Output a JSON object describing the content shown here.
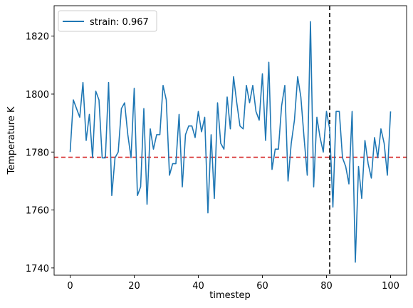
{
  "chart_data": {
    "type": "line",
    "title": "",
    "xlabel": "timestep",
    "ylabel": "Temperature K",
    "xlim": [
      -5,
      105
    ],
    "ylim": [
      1737.5,
      1830.5
    ],
    "xticks": [
      0,
      20,
      40,
      60,
      80,
      100
    ],
    "yticks": [
      1740,
      1760,
      1780,
      1800,
      1820
    ],
    "grid": false,
    "legend_position": "top-left",
    "series": [
      {
        "name": "strain: 0.967",
        "color": "#1f77b4",
        "x": [
          0,
          1,
          2,
          3,
          4,
          5,
          6,
          7,
          8,
          9,
          10,
          11,
          12,
          13,
          14,
          15,
          16,
          17,
          18,
          19,
          20,
          21,
          22,
          23,
          24,
          25,
          26,
          27,
          28,
          29,
          30,
          31,
          32,
          33,
          34,
          35,
          36,
          37,
          38,
          39,
          40,
          41,
          42,
          43,
          44,
          45,
          46,
          47,
          48,
          49,
          50,
          51,
          52,
          53,
          54,
          55,
          56,
          57,
          58,
          59,
          60,
          61,
          62,
          63,
          64,
          65,
          66,
          67,
          68,
          69,
          70,
          71,
          72,
          73,
          74,
          75,
          76,
          77,
          78,
          79,
          80,
          81,
          82,
          83,
          84,
          85,
          86,
          87,
          88,
          89,
          90,
          91,
          92,
          93,
          94,
          95,
          96,
          97,
          98,
          99,
          100
        ],
        "y": [
          1780,
          1798,
          1795,
          1792,
          1804,
          1784,
          1793,
          1778,
          1801,
          1798,
          1778,
          1778,
          1804,
          1765,
          1778,
          1780,
          1795,
          1797,
          1786,
          1778,
          1802,
          1765,
          1768,
          1795,
          1762,
          1788,
          1781,
          1786,
          1786,
          1803,
          1798,
          1772,
          1776,
          1776,
          1793,
          1768,
          1786,
          1789,
          1789,
          1785,
          1794,
          1787,
          1792,
          1759,
          1786,
          1764,
          1797,
          1783,
          1781,
          1799,
          1788,
          1806,
          1797,
          1789,
          1788,
          1803,
          1797,
          1803,
          1794,
          1791,
          1807,
          1784,
          1811,
          1774,
          1781,
          1781,
          1796,
          1803,
          1770,
          1783,
          1791,
          1806,
          1799,
          1785,
          1772,
          1825,
          1768,
          1792,
          1785,
          1780,
          1794,
          1788,
          1761,
          1794,
          1794,
          1778,
          1775,
          1769,
          1794,
          1742,
          1775,
          1764,
          1784,
          1776,
          1771,
          1785,
          1778,
          1788,
          1783,
          1772,
          1794
        ]
      }
    ],
    "reference_lines": [
      {
        "orientation": "horizontal",
        "value": 1778.2,
        "color": "#d62728",
        "style": "dashed"
      },
      {
        "orientation": "vertical",
        "value": 81,
        "color": "#000000",
        "style": "dashed"
      }
    ]
  }
}
